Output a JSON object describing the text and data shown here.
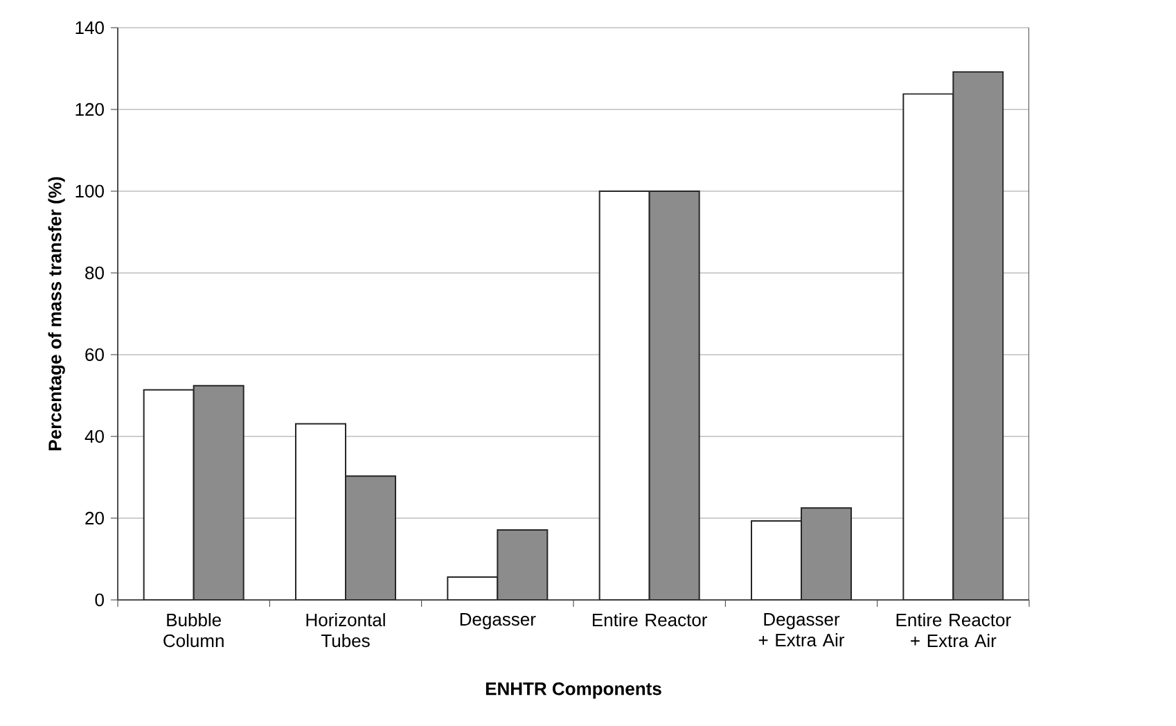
{
  "chart_data": {
    "type": "bar",
    "xlabel": "ENHTR Components",
    "ylabel": "Percentage of mass transfer (%)",
    "categories": [
      "Bubble Column",
      "Horizontal Tubes",
      "Degasser",
      "Entire Reactor",
      "Degasser + Extra Air",
      "Entire Reactor + Extra Air"
    ],
    "series": [
      {
        "color": "#ffffff",
        "values": [
          51.4,
          43.1,
          5.6,
          100,
          19.3,
          123.8
        ]
      },
      {
        "color": "#8c8c8c",
        "values": [
          52.4,
          30.3,
          17.1,
          100,
          22.5,
          129.2
        ]
      }
    ],
    "ylim": [
      0,
      140
    ],
    "yticks": [
      0,
      20,
      40,
      60,
      80,
      100,
      120,
      140
    ],
    "grid": "y"
  }
}
